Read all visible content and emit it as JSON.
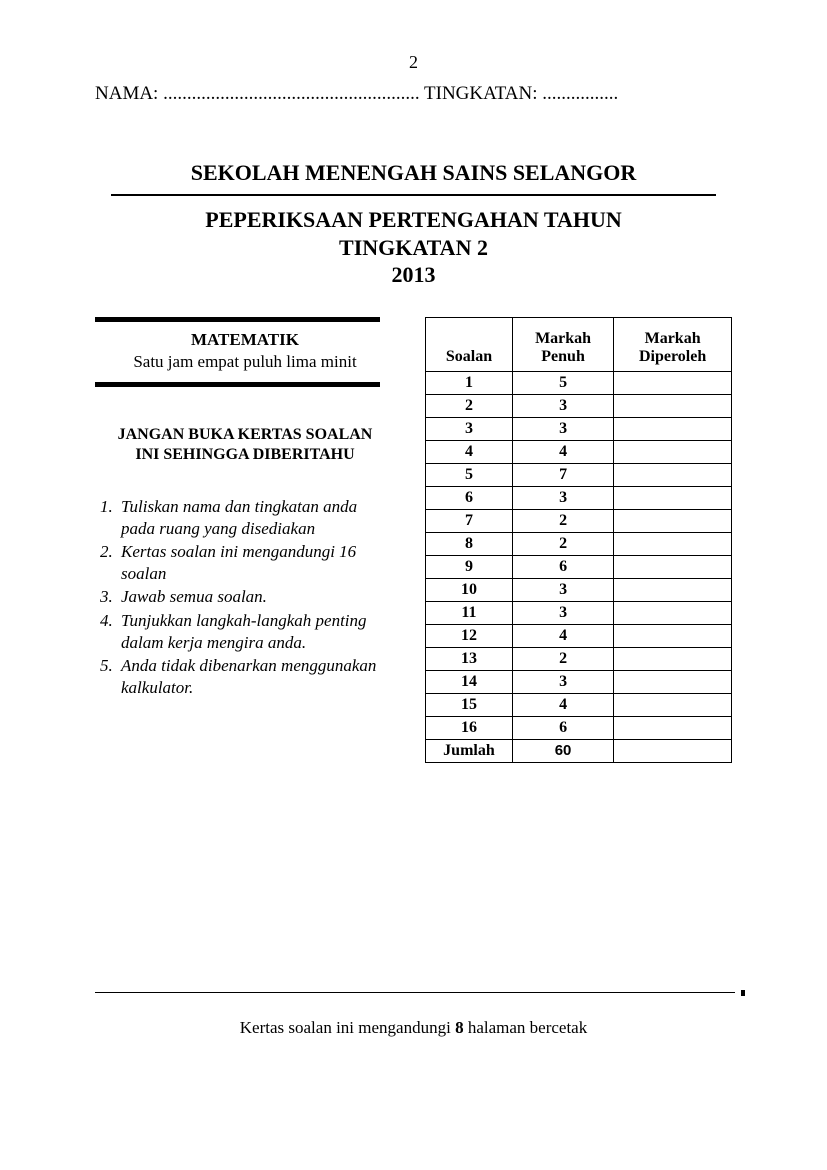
{
  "page_number": "2",
  "form": {
    "name_label": "NAMA: ......................................................",
    "tingkatan_label": "TINGKATAN: ................"
  },
  "school": "SEKOLAH MENENGAH SAINS SELANGOR",
  "exam": {
    "line1": "PEPERIKSAAN PERTENGAHAN TAHUN",
    "line2": "TINGKATAN 2",
    "line3": "2013"
  },
  "subject": "MATEMATIK",
  "duration": "Satu jam empat puluh lima minit",
  "warning": {
    "line1": "JANGAN BUKA KERTAS SOALAN",
    "line2": "INI SEHINGGA DIBERITAHU"
  },
  "instructions": [
    "Tuliskan nama dan tingkatan anda pada  ruang yang disediakan",
    "Kertas soalan ini mengandungi 16 soalan",
    "Jawab semua soalan.",
    "Tunjukkan langkah-langkah penting dalam kerja mengira anda.",
    "Anda tidak dibenarkan menggunakan kalkulator."
  ],
  "table": {
    "headers": {
      "col1": "Soalan",
      "col2_l1": "Markah",
      "col2_l2": "Penuh",
      "col3_l1": "Markah",
      "col3_l2": "Diperoleh"
    },
    "rows": [
      {
        "q": "1",
        "m": "5"
      },
      {
        "q": "2",
        "m": "3"
      },
      {
        "q": "3",
        "m": "3"
      },
      {
        "q": "4",
        "m": "4"
      },
      {
        "q": "5",
        "m": "7"
      },
      {
        "q": "6",
        "m": "3"
      },
      {
        "q": "7",
        "m": "2"
      },
      {
        "q": "8",
        "m": "2"
      },
      {
        "q": "9",
        "m": "6"
      },
      {
        "q": "10",
        "m": "3"
      },
      {
        "q": "11",
        "m": "3"
      },
      {
        "q": "12",
        "m": "4"
      },
      {
        "q": "13",
        "m": "2"
      },
      {
        "q": "14",
        "m": "3"
      },
      {
        "q": "15",
        "m": "4"
      },
      {
        "q": "16",
        "m": "6"
      }
    ],
    "total_label": "Jumlah",
    "total_value": "60"
  },
  "footer": {
    "pre": "Kertas soalan ini mengandungi ",
    "bold": "8",
    "post": " halaman bercetak"
  }
}
